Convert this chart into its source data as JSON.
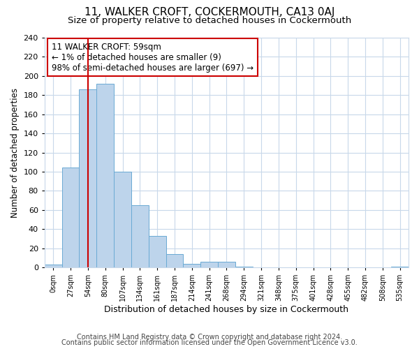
{
  "title": "11, WALKER CROFT, COCKERMOUTH, CA13 0AJ",
  "subtitle": "Size of property relative to detached houses in Cockermouth",
  "xlabel": "Distribution of detached houses by size in Cockermouth",
  "ylabel": "Number of detached properties",
  "bin_labels": [
    "0sqm",
    "27sqm",
    "54sqm",
    "80sqm",
    "107sqm",
    "134sqm",
    "161sqm",
    "187sqm",
    "214sqm",
    "241sqm",
    "268sqm",
    "294sqm",
    "321sqm",
    "348sqm",
    "375sqm",
    "401sqm",
    "428sqm",
    "455sqm",
    "482sqm",
    "508sqm",
    "535sqm"
  ],
  "bar_heights": [
    3,
    104,
    186,
    192,
    100,
    65,
    33,
    14,
    4,
    6,
    6,
    1,
    0,
    0,
    0,
    0,
    0,
    0,
    0,
    0,
    1
  ],
  "bar_color": "#bdd4eb",
  "bar_edge_color": "#6aaad4",
  "grid_color": "#c8d8ea",
  "vline_color": "#cc0000",
  "annotation_text": "11 WALKER CROFT: 59sqm\n← 1% of detached houses are smaller (9)\n98% of semi-detached houses are larger (697) →",
  "annotation_box_edge": "#cc0000",
  "ylim": [
    0,
    240
  ],
  "yticks": [
    0,
    20,
    40,
    60,
    80,
    100,
    120,
    140,
    160,
    180,
    200,
    220,
    240
  ],
  "footer1": "Contains HM Land Registry data © Crown copyright and database right 2024.",
  "footer2": "Contains public sector information licensed under the Open Government Licence v3.0.",
  "bg_color": "#ffffff",
  "title_fontsize": 11,
  "subtitle_fontsize": 9.5,
  "annotation_fontsize": 8.5,
  "footer_fontsize": 7
}
